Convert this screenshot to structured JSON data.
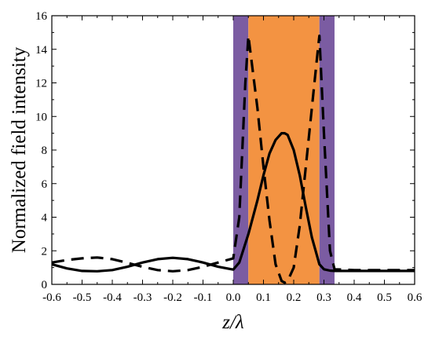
{
  "chart_data": {
    "type": "line",
    "title": "",
    "xlabel": "z/λ",
    "ylabel": "Normalized field intensity",
    "xlim": [
      -0.6,
      0.6
    ],
    "ylim": [
      0,
      16
    ],
    "grid": false,
    "x_ticks": [
      -0.6,
      -0.5,
      -0.4,
      -0.3,
      -0.2,
      -0.1,
      0.0,
      0.1,
      0.2,
      0.3,
      0.4,
      0.5,
      0.6
    ],
    "x_tick_labels": [
      "-0.6",
      "-0.5",
      "-0.4",
      "-0.3",
      "-0.2",
      "-0.1",
      "0.0",
      "0.1",
      "0.2",
      "0.3",
      "0.4",
      "0.5",
      "0.6"
    ],
    "y_ticks": [
      0,
      2,
      4,
      6,
      8,
      10,
      12,
      14,
      16
    ],
    "y_tick_labels": [
      "0",
      "2",
      "4",
      "6",
      "8",
      "10",
      "12",
      "14",
      "16"
    ],
    "regions": [
      {
        "x0": 0.0,
        "x1": 0.05,
        "color": "#7b5ca2"
      },
      {
        "x0": 0.05,
        "x1": 0.285,
        "color": "#f39342"
      },
      {
        "x0": 0.285,
        "x1": 0.335,
        "color": "#7b5ca2"
      }
    ],
    "series": [
      {
        "style": "solid",
        "color": "#000000",
        "x": [
          -0.6,
          -0.55,
          -0.5,
          -0.45,
          -0.4,
          -0.35,
          -0.3,
          -0.25,
          -0.2,
          -0.15,
          -0.1,
          -0.05,
          0.0,
          0.02,
          0.05,
          0.08,
          0.1,
          0.12,
          0.14,
          0.16,
          0.17,
          0.18,
          0.2,
          0.22,
          0.24,
          0.26,
          0.285,
          0.3,
          0.32,
          0.335,
          0.4,
          0.5,
          0.6
        ],
        "y": [
          1.2,
          0.95,
          0.8,
          0.78,
          0.85,
          1.05,
          1.3,
          1.5,
          1.58,
          1.5,
          1.3,
          1.05,
          0.88,
          1.3,
          3.0,
          5.0,
          6.5,
          7.8,
          8.6,
          9.0,
          9.0,
          8.9,
          8.0,
          6.5,
          4.6,
          2.8,
          1.2,
          0.9,
          0.82,
          0.8,
          0.8,
          0.8,
          0.8
        ]
      },
      {
        "style": "dashed",
        "color": "#000000",
        "x": [
          -0.6,
          -0.55,
          -0.5,
          -0.45,
          -0.4,
          -0.35,
          -0.3,
          -0.25,
          -0.2,
          -0.15,
          -0.1,
          -0.05,
          0.0,
          0.02,
          0.04,
          0.05,
          0.08,
          0.1,
          0.12,
          0.14,
          0.16,
          0.17,
          0.18,
          0.2,
          0.22,
          0.24,
          0.26,
          0.28,
          0.285,
          0.3,
          0.32,
          0.335,
          0.4,
          0.5,
          0.6
        ],
        "y": [
          1.3,
          1.45,
          1.55,
          1.6,
          1.5,
          1.28,
          1.05,
          0.85,
          0.78,
          0.85,
          1.05,
          1.3,
          1.55,
          4.0,
          12.0,
          14.8,
          10.5,
          7.0,
          3.8,
          1.2,
          0.2,
          0.1,
          0.2,
          1.0,
          3.5,
          7.0,
          10.5,
          14.0,
          14.8,
          9.0,
          2.0,
          0.9,
          0.85,
          0.85,
          0.85
        ]
      }
    ]
  }
}
